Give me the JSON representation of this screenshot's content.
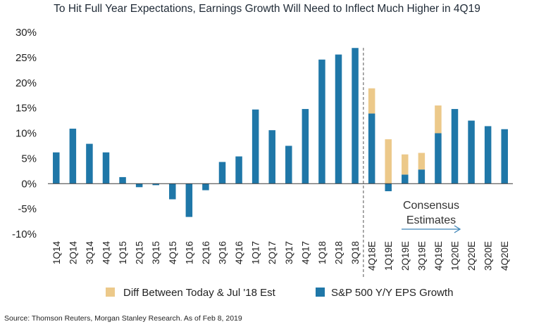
{
  "chart_data": {
    "type": "bar",
    "title": "To Hit Full Year Expectations, Earnings Growth Will Need to Inflect Much Higher in 4Q19",
    "categories": [
      "1Q14",
      "2Q14",
      "3Q14",
      "4Q14",
      "1Q15",
      "2Q15",
      "3Q15",
      "4Q15",
      "1Q16",
      "2Q16",
      "3Q16",
      "4Q16",
      "1Q17",
      "2Q17",
      "3Q17",
      "4Q17",
      "1Q18",
      "2Q18",
      "3Q18",
      "4Q18E",
      "1Q19E",
      "2Q19E",
      "3Q19E",
      "4Q19E",
      "1Q20E",
      "2Q20E",
      "3Q20E",
      "4Q20E"
    ],
    "series": [
      {
        "name": "Diff Between Today & Jul '18 Est",
        "color": "#ecc98a",
        "values": [
          null,
          null,
          null,
          null,
          null,
          null,
          null,
          null,
          null,
          null,
          null,
          null,
          null,
          null,
          null,
          null,
          null,
          null,
          null,
          5.0,
          8.8,
          4.0,
          3.3,
          5.5,
          null,
          null,
          null,
          null
        ]
      },
      {
        "name": "S&P 500 Y/Y EPS Growth",
        "color": "#1f77a8",
        "values": [
          6.2,
          10.9,
          7.9,
          6.2,
          1.3,
          -0.7,
          -0.3,
          -3.1,
          -6.6,
          -1.3,
          4.3,
          5.4,
          14.7,
          10.6,
          7.5,
          14.8,
          24.6,
          25.6,
          26.9,
          13.9,
          -1.5,
          1.8,
          2.8,
          10.0,
          14.8,
          12.5,
          11.4,
          10.8
        ]
      }
    ],
    "ylim": [
      -10,
      30
    ],
    "yticks": [
      -10,
      -5,
      0,
      5,
      10,
      15,
      20,
      25,
      30
    ],
    "ytick_labels": [
      "-10%",
      "-5%",
      "0%",
      "5%",
      "10%",
      "15%",
      "20%",
      "25%",
      "30%"
    ],
    "divider_after": "3Q18",
    "annotation": {
      "line1": "Consensus",
      "line2": "Estimates"
    },
    "legend_placement": "bottom",
    "grid": false,
    "source": "Source: Thomson Reuters, Morgan Stanley Research. As of Feb 8, 2019"
  }
}
